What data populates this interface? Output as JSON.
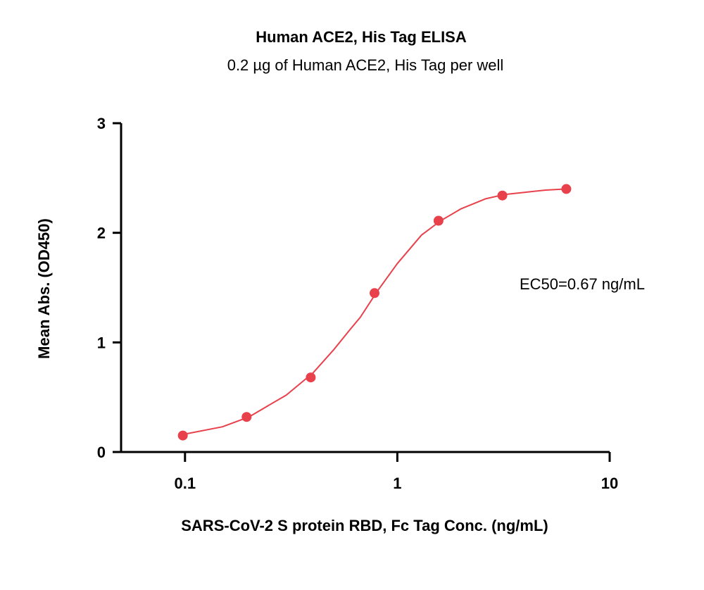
{
  "chart_data": {
    "type": "scatter",
    "title": "Human ACE2, His Tag ELISA",
    "subtitle": "0.2 µg of Human ACE2, His Tag per well",
    "xlabel": "SARS-CoV-2 S protein RBD, Fc Tag Conc. (ng/mL)",
    "ylabel": "Mean Abs. (OD450)",
    "x_scale": "log",
    "xlim": [
      0.05,
      10
    ],
    "ylim": [
      0,
      3
    ],
    "x_ticks": [
      0.1,
      1,
      10
    ],
    "x_tick_labels": [
      "0.1",
      "1",
      "10"
    ],
    "y_ticks": [
      0,
      1,
      2,
      3
    ],
    "y_tick_labels": [
      "0",
      "1",
      "2",
      "3"
    ],
    "grid": false,
    "series": [
      {
        "color": "#e8414b",
        "x": [
          0.0977,
          0.195,
          0.391,
          0.781,
          1.563,
          3.125,
          6.25
        ],
        "y": [
          0.15,
          0.32,
          0.68,
          1.45,
          2.11,
          2.34,
          2.4
        ],
        "fit": "4PL",
        "fit_curve": {
          "x": [
            0.0977,
            0.15,
            0.2,
            0.3,
            0.4,
            0.5,
            0.6,
            0.67,
            0.8,
            1.0,
            1.3,
            1.6,
            2.0,
            2.6,
            3.2,
            4.0,
            5.0,
            6.25
          ],
          "y": [
            0.16,
            0.23,
            0.32,
            0.52,
            0.72,
            0.93,
            1.12,
            1.23,
            1.46,
            1.72,
            1.98,
            2.11,
            2.22,
            2.31,
            2.35,
            2.37,
            2.39,
            2.4
          ]
        }
      }
    ],
    "annotation": "EC50=0.67 ng/mL"
  }
}
